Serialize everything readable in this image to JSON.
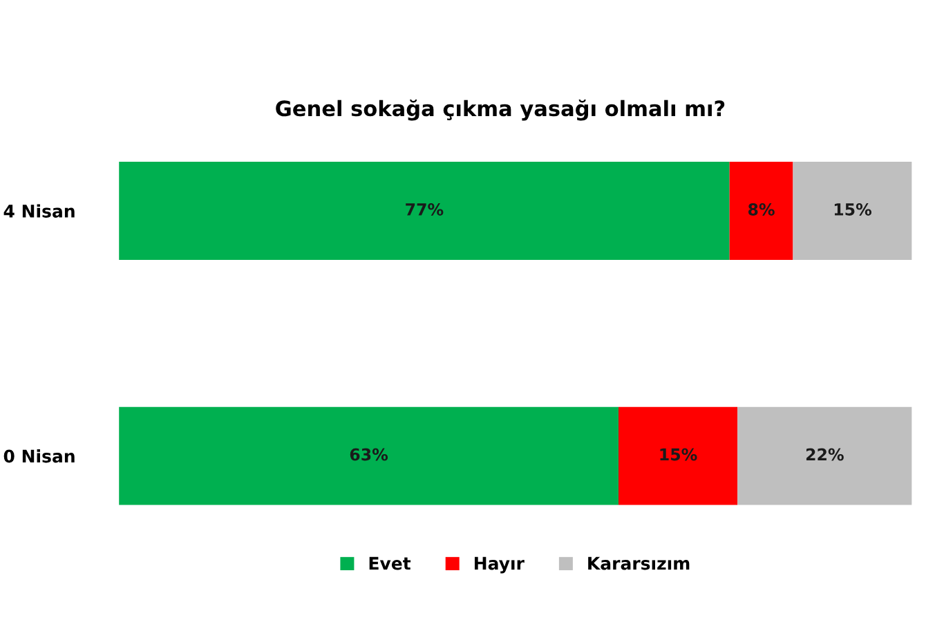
{
  "chart_data": {
    "type": "bar",
    "orientation": "horizontal",
    "stacked": true,
    "title": "Genel sokağa çıkma yasağı olmalı mı?",
    "categories": [
      "4 Nisan",
      "0 Nisan"
    ],
    "series": [
      {
        "name": "Evet",
        "color": "#00b050",
        "values": [
          77,
          63
        ],
        "value_labels": [
          "77%",
          "63%"
        ]
      },
      {
        "name": "Hayır",
        "color": "#ff0000",
        "values": [
          8,
          15
        ],
        "value_labels": [
          "8%",
          "15%"
        ]
      },
      {
        "name": "Kararsızım",
        "color": "#bfbfbf",
        "values": [
          15,
          22
        ],
        "value_labels": [
          "15%",
          "22%"
        ]
      }
    ],
    "tick_labels": "y",
    "grid": false,
    "legend": "bottom"
  }
}
